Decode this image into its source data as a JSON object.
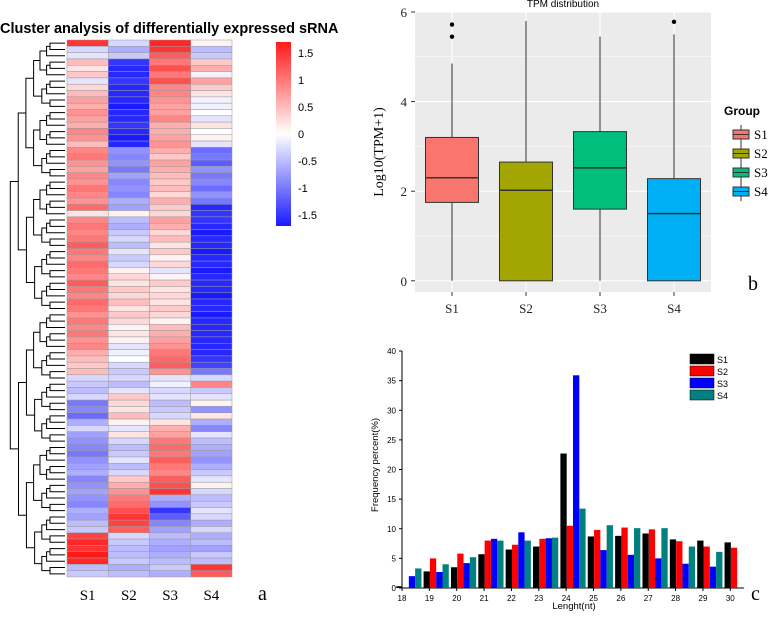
{
  "panel_a": {
    "title": "Cluster analysis of differentially expressed sRNA",
    "panel_label": "a",
    "samples": [
      "S1",
      "S2",
      "S3",
      "S4"
    ],
    "color_scale": {
      "ticks": [
        "1.5",
        "1",
        "0.5",
        "0",
        "-0.5",
        "-1",
        "-1.5"
      ],
      "tick_values": [
        1.5,
        1,
        0.5,
        0,
        -0.5,
        -1,
        -1.5
      ],
      "range": [
        -1.7,
        1.7
      ],
      "low_color": "#1a1aff",
      "mid_color": "#ffffff",
      "high_color": "#ff1a1a"
    }
  },
  "panel_b": {
    "title": "TPM distribution",
    "panel_label": "b",
    "ylabel": "Log10(TPM+1)",
    "legend_title": "Group",
    "y_ticks": [
      "0",
      "2",
      "4",
      "6"
    ],
    "colors": [
      "#f8766d",
      "#a3a500",
      "#00bf7d",
      "#00b0f6"
    ]
  },
  "panel_c": {
    "panel_label": "c",
    "xlabel": "Lenght(nt)",
    "ylabel": "Frequency percent(%)",
    "y_ticks": [
      "0",
      "5",
      "10",
      "15",
      "20",
      "25",
      "30",
      "35",
      "40"
    ],
    "colors": [
      "#000000",
      "#ff0000",
      "#0000ff",
      "#008080"
    ]
  },
  "chart_data": [
    {
      "type": "heatmap",
      "columns": [
        "S1",
        "S2",
        "S3",
        "S4"
      ],
      "rows": 85,
      "values": [
        [
          1.5,
          -0.3,
          1.6,
          0.1
        ],
        [
          -0.3,
          -0.6,
          1.5,
          -0.5
        ],
        [
          -0.2,
          -0.4,
          1.2,
          -0.4
        ],
        [
          0.5,
          -1.5,
          1.0,
          0.4
        ],
        [
          0.2,
          -1.6,
          1.3,
          0.6
        ],
        [
          0.4,
          -1.6,
          1.0,
          -0.1
        ],
        [
          -0.2,
          -1.5,
          1.3,
          0.7
        ],
        [
          0.3,
          -1.6,
          0.9,
          0.4
        ],
        [
          0.5,
          -1.6,
          0.9,
          0.2
        ],
        [
          0.7,
          -1.6,
          0.8,
          -0.1
        ],
        [
          0.6,
          -1.7,
          0.7,
          -0.1
        ],
        [
          0.8,
          -1.6,
          0.7,
          0.0
        ],
        [
          0.7,
          -1.6,
          0.9,
          -0.2
        ],
        [
          0.6,
          -1.5,
          0.6,
          0.2
        ],
        [
          0.9,
          -1.6,
          0.6,
          0.0
        ],
        [
          0.8,
          -1.7,
          0.7,
          0.1
        ],
        [
          0.5,
          -1.6,
          0.8,
          -0.2
        ],
        [
          0.9,
          -0.8,
          0.6,
          -1.1
        ],
        [
          1.0,
          -0.9,
          0.4,
          -1.0
        ],
        [
          0.8,
          -0.8,
          0.7,
          -1.2
        ],
        [
          0.7,
          -1.0,
          0.6,
          -0.8
        ],
        [
          0.9,
          -0.7,
          0.5,
          -1.0
        ],
        [
          0.8,
          -0.9,
          0.4,
          -0.9
        ],
        [
          1.0,
          -0.8,
          0.5,
          -1.1
        ],
        [
          0.9,
          -0.9,
          0.3,
          -0.8
        ],
        [
          0.8,
          -0.6,
          0.6,
          -1.0
        ],
        [
          1.1,
          -0.7,
          0.4,
          -1.6
        ],
        [
          0.2,
          0.1,
          0.3,
          -1.5
        ],
        [
          0.9,
          -0.5,
          0.7,
          -1.5
        ],
        [
          1.0,
          -0.6,
          0.6,
          -1.6
        ],
        [
          0.9,
          -0.4,
          0.3,
          -1.7
        ],
        [
          1.0,
          -0.3,
          0.5,
          -1.6
        ],
        [
          1.2,
          -0.5,
          0.2,
          -1.6
        ],
        [
          1.0,
          -0.2,
          0.4,
          -1.7
        ],
        [
          0.9,
          -0.4,
          0.1,
          -1.6
        ],
        [
          1.1,
          -0.3,
          0.3,
          -1.6
        ],
        [
          1.0,
          0.1,
          -0.2,
          -1.7
        ],
        [
          0.9,
          0.3,
          0.1,
          -1.6
        ],
        [
          1.2,
          0.2,
          0.4,
          -1.6
        ],
        [
          1.0,
          0.4,
          0.2,
          -1.6
        ],
        [
          0.9,
          0.3,
          0.3,
          -1.7
        ],
        [
          1.1,
          0.5,
          0.2,
          -1.6
        ],
        [
          1.0,
          0.2,
          0.4,
          -1.6
        ],
        [
          0.8,
          0.4,
          0.3,
          -1.7
        ],
        [
          1.0,
          0.3,
          0.1,
          -1.6
        ],
        [
          0.9,
          0.1,
          0.5,
          -1.6
        ],
        [
          1.0,
          0.2,
          0.6,
          -1.6
        ],
        [
          0.8,
          0.1,
          0.7,
          -1.6
        ],
        [
          0.9,
          -0.2,
          0.8,
          -1.6
        ],
        [
          0.6,
          -0.1,
          1.0,
          -1.6
        ],
        [
          0.5,
          0.0,
          1.1,
          -1.5
        ],
        [
          0.4,
          -0.3,
          1.2,
          -1.4
        ],
        [
          0.5,
          -0.4,
          0.8,
          -1.0
        ],
        [
          -0.3,
          -0.3,
          -0.2,
          -0.3
        ],
        [
          -0.4,
          -0.5,
          -0.1,
          0.9
        ],
        [
          -0.5,
          -0.2,
          -0.3,
          -0.4
        ],
        [
          -0.3,
          0.4,
          -0.2,
          -0.2
        ],
        [
          -1.0,
          0.3,
          -0.5,
          0.1
        ],
        [
          -0.9,
          0.2,
          -0.4,
          -0.8
        ],
        [
          -1.1,
          0.5,
          -0.3,
          0.2
        ],
        [
          -0.6,
          0.1,
          0.2,
          -0.6
        ],
        [
          -0.3,
          -0.2,
          0.6,
          -0.9
        ],
        [
          -0.7,
          0.2,
          0.7,
          -0.2
        ],
        [
          -0.8,
          -0.3,
          1.0,
          -0.5
        ],
        [
          -0.9,
          -0.5,
          1.1,
          -0.6
        ],
        [
          -1.0,
          -0.4,
          1.0,
          -0.7
        ],
        [
          -0.8,
          -0.2,
          1.2,
          -0.8
        ],
        [
          -0.7,
          -0.5,
          1.0,
          -0.6
        ],
        [
          -0.6,
          -0.3,
          0.9,
          -0.4
        ],
        [
          -0.9,
          0.4,
          1.2,
          -0.2
        ],
        [
          -0.8,
          0.6,
          1.3,
          0.1
        ],
        [
          -0.7,
          0.8,
          1.5,
          -0.3
        ],
        [
          -0.8,
          1.0,
          -0.6,
          -0.5
        ],
        [
          -0.9,
          1.1,
          -0.8,
          -0.4
        ],
        [
          -0.6,
          1.3,
          -1.5,
          -0.2
        ],
        [
          -0.7,
          1.5,
          -1.2,
          -0.3
        ],
        [
          -0.5,
          1.4,
          -0.9,
          -0.6
        ],
        [
          -0.4,
          1.2,
          -0.7,
          -0.3
        ],
        [
          1.4,
          -0.3,
          -0.5,
          -0.6
        ],
        [
          1.6,
          -0.4,
          -0.6,
          -0.5
        ],
        [
          1.5,
          -0.5,
          -0.7,
          -0.7
        ],
        [
          1.7,
          -0.5,
          -0.6,
          -0.4
        ],
        [
          1.6,
          -0.4,
          -0.5,
          -0.5
        ],
        [
          -0.5,
          -0.6,
          -0.4,
          1.5
        ],
        [
          -0.4,
          -0.5,
          -0.6,
          1.2
        ]
      ]
    },
    {
      "type": "box",
      "title": "TPM distribution",
      "categories": [
        "S1",
        "S2",
        "S3",
        "S4"
      ],
      "ylabel": "Log10(TPM+1)",
      "ylim": [
        -0.25,
        6
      ],
      "series": [
        {
          "name": "S1",
          "whisker_low": 0,
          "q1": 1.75,
          "median": 2.3,
          "q3": 3.2,
          "whisker_high": 4.85,
          "outliers": [
            5.45,
            5.72
          ]
        },
        {
          "name": "S2",
          "whisker_low": 0,
          "q1": 0,
          "median": 2.02,
          "q3": 2.65,
          "whisker_high": 5.8,
          "outliers": []
        },
        {
          "name": "S3",
          "whisker_low": 0,
          "q1": 1.6,
          "median": 2.52,
          "q3": 3.33,
          "whisker_high": 5.45,
          "outliers": []
        },
        {
          "name": "S4",
          "whisker_low": 0,
          "q1": 0,
          "median": 1.5,
          "q3": 2.28,
          "whisker_high": 5.5,
          "outliers": [
            5.78
          ]
        }
      ]
    },
    {
      "type": "bar",
      "categories": [
        "18",
        "19",
        "20",
        "21",
        "22",
        "23",
        "24",
        "25",
        "26",
        "27",
        "28",
        "29",
        "30"
      ],
      "xlabel": "Lenght(nt)",
      "ylabel": "Frequency percent(%)",
      "ylim": [
        0,
        40
      ],
      "series": [
        {
          "name": "S1",
          "values": [
            0.3,
            2.8,
            3.5,
            5.7,
            6.5,
            7.0,
            22.7,
            8.7,
            8.8,
            9.2,
            8.2,
            8.0,
            7.7
          ]
        },
        {
          "name": "S2",
          "values": [
            0,
            5.0,
            5.8,
            8.0,
            7.3,
            8.3,
            10.5,
            9.8,
            10.2,
            9.9,
            7.9,
            7.0,
            6.8
          ]
        },
        {
          "name": "S3",
          "values": [
            2.0,
            2.7,
            4.2,
            8.3,
            9.4,
            8.4,
            35.9,
            6.4,
            5.6,
            5.0,
            4.1,
            3.6,
            0
          ]
        },
        {
          "name": "S4",
          "values": [
            3.3,
            4.0,
            5.2,
            8.0,
            8.0,
            8.5,
            13.4,
            10.6,
            10.1,
            10.1,
            7.0,
            6.1,
            0
          ]
        }
      ]
    }
  ]
}
